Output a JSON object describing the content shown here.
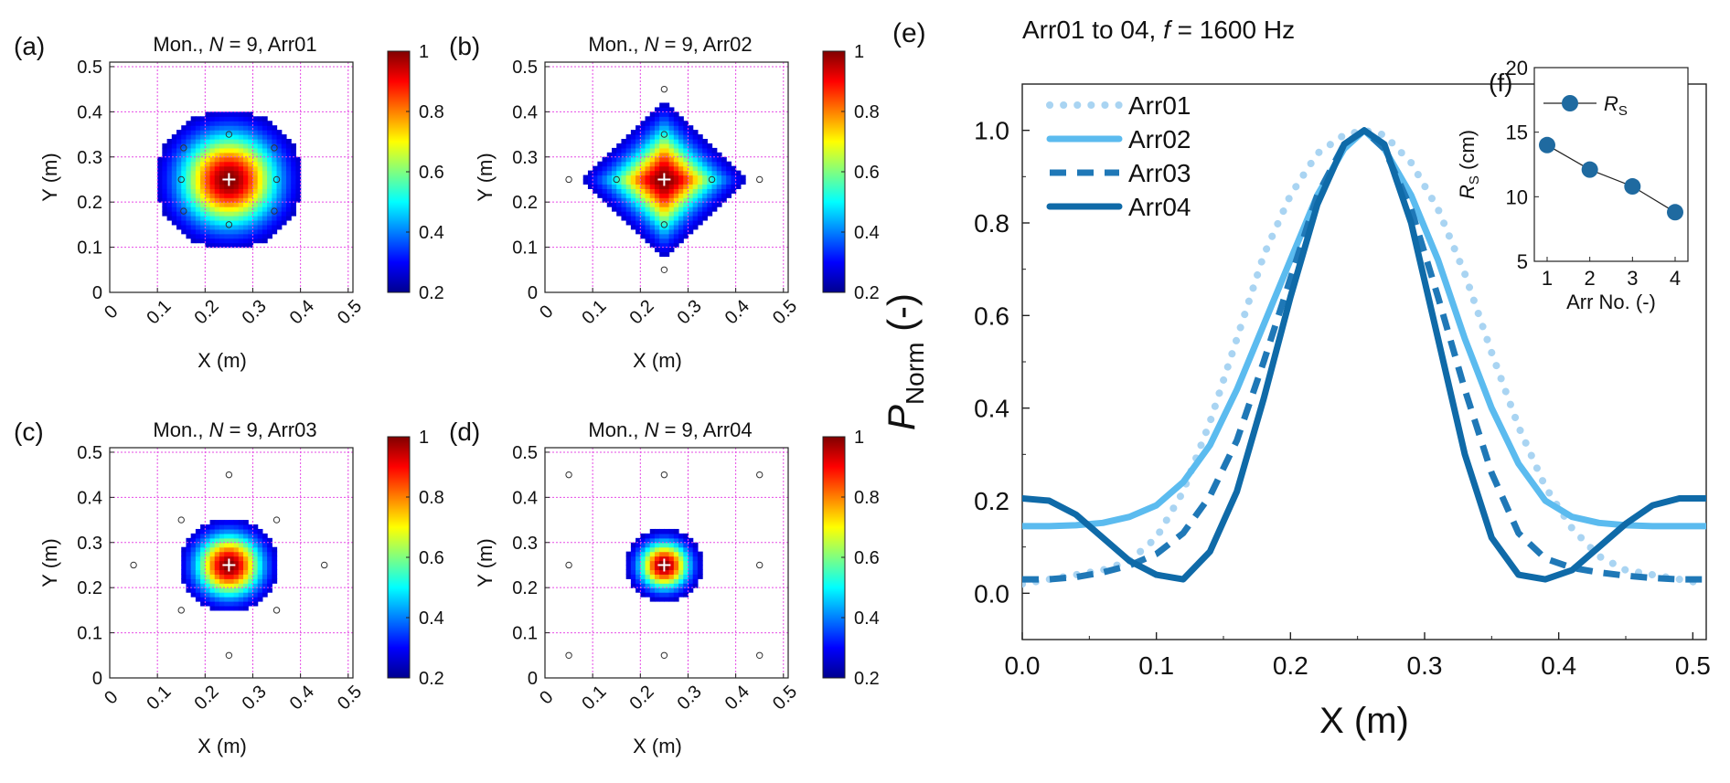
{
  "colors": {
    "arr01": "#a9d4f2",
    "arr02": "#5bbbef",
    "arr03": "#1f78b7",
    "arr04": "#0f6aa8",
    "grid": "#e64be6",
    "inset_marker": "#1f6aa0"
  },
  "panels": [
    {
      "letter": "(a)",
      "title_prefix": "Mon., ",
      "title_var": "N",
      "title_suffix": " = 9, Arr01",
      "xlabel": "X (m)",
      "ylabel": "Y (m)",
      "shape": "circle",
      "radius": 0.155,
      "sources": [
        [
          0.25,
          0.35
        ],
        [
          0.15,
          0.25
        ],
        [
          0.35,
          0.25
        ],
        [
          0.25,
          0.15
        ],
        [
          0.155,
          0.32
        ],
        [
          0.345,
          0.32
        ],
        [
          0.155,
          0.18
        ],
        [
          0.345,
          0.18
        ]
      ],
      "xticks": [
        "0",
        "0.1",
        "0.2",
        "0.3",
        "0.4",
        "0.5"
      ],
      "yticks": [
        "0",
        "0.1",
        "0.2",
        "0.3",
        "0.4",
        "0.5"
      ]
    },
    {
      "letter": "(b)",
      "title_prefix": "Mon., ",
      "title_var": "N",
      "title_suffix": " = 9, Arr02",
      "xlabel": "X (m)",
      "ylabel": "Y (m)",
      "shape": "diamond",
      "radius": 0.175,
      "sources": [
        [
          0.25,
          0.45
        ],
        [
          0.25,
          0.35
        ],
        [
          0.25,
          0.15
        ],
        [
          0.25,
          0.05
        ],
        [
          0.05,
          0.25
        ],
        [
          0.15,
          0.25
        ],
        [
          0.35,
          0.25
        ],
        [
          0.45,
          0.25
        ]
      ],
      "xticks": [
        "0",
        "0.1",
        "0.2",
        "0.3",
        "0.4",
        "0.5"
      ],
      "yticks": [
        "0",
        "0.1",
        "0.2",
        "0.3",
        "0.4",
        "0.5"
      ]
    },
    {
      "letter": "(c)",
      "title_prefix": "Mon., ",
      "title_var": "N",
      "title_suffix": " = 9, Arr03",
      "xlabel": "X (m)",
      "ylabel": "Y (m)",
      "shape": "circle",
      "radius": 0.105,
      "sources": [
        [
          0.25,
          0.45
        ],
        [
          0.25,
          0.05
        ],
        [
          0.05,
          0.25
        ],
        [
          0.45,
          0.25
        ],
        [
          0.15,
          0.35
        ],
        [
          0.35,
          0.35
        ],
        [
          0.15,
          0.15
        ],
        [
          0.35,
          0.15
        ]
      ],
      "xticks": [
        "0",
        "0.1",
        "0.2",
        "0.3",
        "0.4",
        "0.5"
      ],
      "yticks": [
        "0",
        "0.1",
        "0.2",
        "0.3",
        "0.4",
        "0.5"
      ]
    },
    {
      "letter": "(d)",
      "title_prefix": "Mon., ",
      "title_var": "N",
      "title_suffix": " = 9, Arr04",
      "xlabel": "X (m)",
      "ylabel": "Y (m)",
      "shape": "circle",
      "radius": 0.08,
      "sources": [
        [
          0.05,
          0.45
        ],
        [
          0.25,
          0.45
        ],
        [
          0.45,
          0.45
        ],
        [
          0.05,
          0.25
        ],
        [
          0.45,
          0.25
        ],
        [
          0.05,
          0.05
        ],
        [
          0.25,
          0.05
        ],
        [
          0.45,
          0.05
        ]
      ],
      "xticks": [
        "0",
        "0.1",
        "0.2",
        "0.3",
        "0.4",
        "0.5"
      ],
      "yticks": [
        "0",
        "0.1",
        "0.2",
        "0.3",
        "0.4",
        "0.5"
      ]
    }
  ],
  "colorbar_ticks": [
    "1",
    "0.8",
    "0.6",
    "0.4",
    "0.2"
  ],
  "chart_data": [
    {
      "type": "heatmap",
      "panel": "(a)-(d)",
      "description_values": "normalized pressure maps, values 0.2 to 1, peak at (0.25, 0.25)",
      "center": [
        0.25,
        0.25
      ],
      "xlim": [
        0,
        0.51
      ],
      "ylim": [
        0,
        0.51
      ],
      "colorbar_range": [
        0.2,
        1
      ]
    },
    {
      "type": "line",
      "panel": "(e)",
      "letter": "(e)",
      "title_prefix": "Arr01 to 04, ",
      "title_var": "f",
      "title_suffix": " = 1600 Hz",
      "xlabel": "X (m)",
      "ylabel_main": "P",
      "ylabel_sub": "Norm",
      "ylabel_unit": " (-)",
      "xlim": [
        0,
        0.51
      ],
      "ylim": [
        -0.1,
        1.1
      ],
      "xticks": [
        "0.0",
        "0.1",
        "0.2",
        "0.3",
        "0.4",
        "0.5"
      ],
      "yticks": [
        "0.0",
        "0.2",
        "0.4",
        "0.6",
        "0.8",
        "1.0"
      ],
      "x": [
        0.0,
        0.02,
        0.04,
        0.06,
        0.08,
        0.1,
        0.12,
        0.14,
        0.16,
        0.18,
        0.2,
        0.22,
        0.24,
        0.255,
        0.27,
        0.29,
        0.31,
        0.33,
        0.35,
        0.37,
        0.39,
        0.41,
        0.43,
        0.45,
        0.47,
        0.49,
        0.51
      ],
      "series": [
        {
          "name": "Arr01",
          "style": "dotted",
          "values": [
            0.02,
            0.03,
            0.04,
            0.05,
            0.07,
            0.12,
            0.22,
            0.37,
            0.55,
            0.73,
            0.86,
            0.95,
            0.99,
            1.0,
            0.99,
            0.93,
            0.83,
            0.69,
            0.52,
            0.36,
            0.23,
            0.14,
            0.08,
            0.05,
            0.04,
            0.03,
            0.02
          ]
        },
        {
          "name": "Arr02",
          "style": "solid",
          "values": [
            0.145,
            0.145,
            0.147,
            0.152,
            0.165,
            0.19,
            0.24,
            0.32,
            0.44,
            0.58,
            0.72,
            0.86,
            0.96,
            1.0,
            0.96,
            0.86,
            0.72,
            0.55,
            0.4,
            0.28,
            0.2,
            0.165,
            0.152,
            0.147,
            0.145,
            0.145,
            0.145
          ]
        },
        {
          "name": "Arr03",
          "style": "dashed",
          "values": [
            0.03,
            0.03,
            0.035,
            0.045,
            0.06,
            0.085,
            0.13,
            0.21,
            0.33,
            0.5,
            0.68,
            0.86,
            0.97,
            1.0,
            0.96,
            0.83,
            0.64,
            0.44,
            0.26,
            0.13,
            0.075,
            0.055,
            0.045,
            0.038,
            0.033,
            0.03,
            0.03
          ]
        },
        {
          "name": "Arr04",
          "style": "solid",
          "values": [
            0.205,
            0.2,
            0.17,
            0.12,
            0.07,
            0.04,
            0.03,
            0.09,
            0.22,
            0.42,
            0.64,
            0.84,
            0.97,
            1.0,
            0.97,
            0.8,
            0.55,
            0.3,
            0.12,
            0.04,
            0.03,
            0.05,
            0.1,
            0.15,
            0.19,
            0.205,
            0.205
          ]
        }
      ]
    },
    {
      "type": "scatter",
      "panel": "(f)",
      "letter": "(f)",
      "xlabel": "Arr No. (-)",
      "ylabel_main": "R",
      "ylabel_sub": "S",
      "ylabel_unit": " (cm)",
      "legend_main": "R",
      "legend_sub": "S",
      "xlim": [
        0.7,
        4.3
      ],
      "ylim": [
        5,
        20
      ],
      "xticks": [
        "1",
        "2",
        "3",
        "4"
      ],
      "yticks": [
        "5",
        "10",
        "15",
        "20"
      ],
      "x": [
        1,
        2,
        3,
        4
      ],
      "values": [
        14.0,
        12.1,
        10.8,
        8.8
      ]
    }
  ]
}
